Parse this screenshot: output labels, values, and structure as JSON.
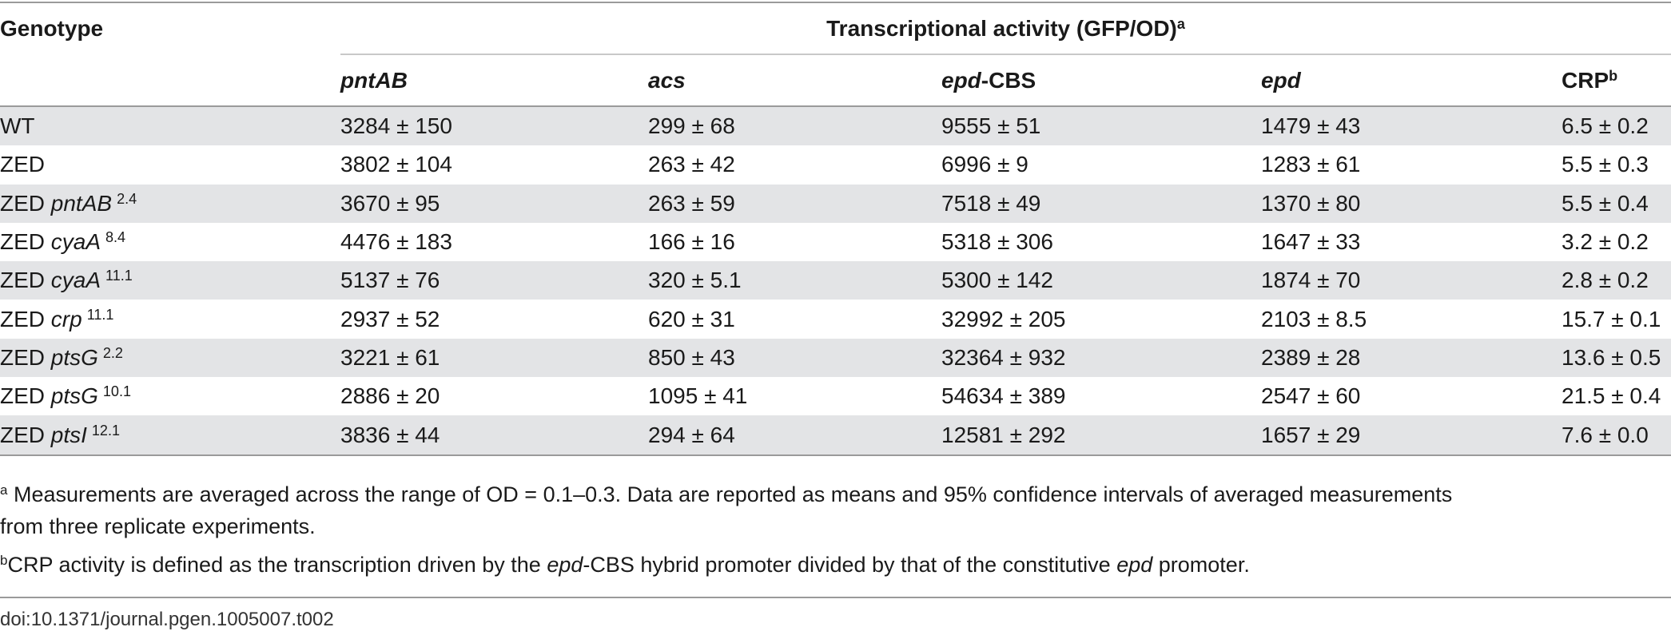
{
  "table": {
    "header": {
      "genotype": "Genotype",
      "group_label": "Transcriptional activity (GFP/OD)",
      "group_sup": "a",
      "columns": [
        {
          "italic": "pntAB",
          "plain": "",
          "sup": ""
        },
        {
          "italic": "acs",
          "plain": "",
          "sup": ""
        },
        {
          "italic": "epd",
          "plain": "-CBS",
          "sup": ""
        },
        {
          "italic": "epd",
          "plain": "",
          "sup": ""
        },
        {
          "italic": "",
          "plain": "CRP",
          "sup": "b"
        }
      ]
    },
    "rows": [
      {
        "prefix": "WT",
        "gene": "",
        "sup": "",
        "values": [
          "3284 ± 150",
          "299 ± 68",
          "9555 ± 51",
          "1479 ± 43",
          "6.5 ± 0.2"
        ]
      },
      {
        "prefix": "ZED",
        "gene": "",
        "sup": "",
        "values": [
          "3802 ± 104",
          "263 ± 42",
          "6996 ± 9",
          "1283 ± 61",
          "5.5 ± 0.3"
        ]
      },
      {
        "prefix": "ZED ",
        "gene": "pntAB",
        "sup": "2.4",
        "values": [
          "3670 ± 95",
          "263 ± 59",
          "7518 ± 49",
          "1370 ± 80",
          "5.5 ± 0.4"
        ]
      },
      {
        "prefix": "ZED ",
        "gene": "cyaA",
        "sup": "8.4",
        "values": [
          "4476 ± 183",
          "166 ± 16",
          "5318 ± 306",
          "1647 ± 33",
          "3.2 ± 0.2"
        ]
      },
      {
        "prefix": "ZED ",
        "gene": "cyaA",
        "sup": "11.1",
        "values": [
          "5137 ± 76",
          "320 ± 5.1",
          "5300 ± 142",
          "1874 ± 70",
          "2.8 ± 0.2"
        ]
      },
      {
        "prefix": "ZED ",
        "gene": "crp",
        "sup": "11.1",
        "values": [
          "2937 ± 52",
          "620 ± 31",
          "32992 ± 205",
          "2103 ± 8.5",
          "15.7 ± 0.1"
        ]
      },
      {
        "prefix": "ZED ",
        "gene": "ptsG",
        "sup": "2.2",
        "values": [
          "3221 ± 61",
          "850 ± 43",
          "32364 ± 932",
          "2389 ± 28",
          "13.6 ± 0.5"
        ]
      },
      {
        "prefix": "ZED ",
        "gene": "ptsG",
        "sup": "10.1",
        "values": [
          "2886 ± 20",
          "1095 ± 41",
          "54634 ± 389",
          "2547 ± 60",
          "21.5 ± 0.4"
        ]
      },
      {
        "prefix": "ZED ",
        "gene": "ptsI",
        "sup": "12.1",
        "values": [
          "3836 ± 44",
          "294 ± 64",
          "12581 ± 292",
          "1657 ± 29",
          "7.6 ± 0.0"
        ]
      }
    ]
  },
  "footnotes": {
    "a": {
      "mark": "a",
      "line1": " Measurements are averaged across the range of OD = 0.1–0.3. Data are reported as means and 95% confidence intervals of averaged measurements",
      "line2": "from three replicate experiments."
    },
    "b": {
      "mark": "b",
      "part1": "CRP activity is defined as the transcription driven by the ",
      "it1": "epd",
      "part2": "-CBS hybrid promoter divided by that of the constitutive ",
      "it2": "epd",
      "part3": " promoter."
    }
  },
  "doi": "doi:10.1371/journal.pgen.1005007.t002"
}
